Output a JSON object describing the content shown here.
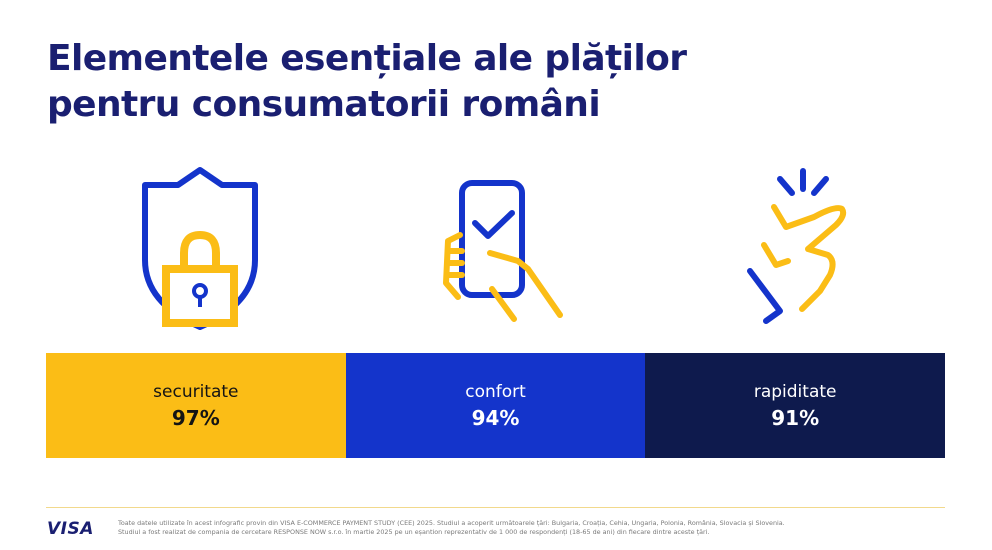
{
  "header": {
    "title_line1": "Elementele esențiale ale plăților",
    "title_line2": "pentru consumatorii români"
  },
  "icons": [
    {
      "name": "shield-lock-icon"
    },
    {
      "name": "phone-check-icon"
    },
    {
      "name": "finger-snap-icon"
    }
  ],
  "stats": [
    {
      "label": "securitate",
      "value": "97%",
      "color": "#fbbd16",
      "text_color": "#141414"
    },
    {
      "label": "confort",
      "value": "94%",
      "color": "#1434cb",
      "text_color": "#ffffff"
    },
    {
      "label": "rapiditate",
      "value": "91%",
      "color": "#0e1a4d",
      "text_color": "#ffffff"
    }
  ],
  "colors": {
    "title": "#1a1f71",
    "blue": "#1434cb",
    "yellow": "#fbbd16",
    "navy": "#0e1a4d"
  },
  "footer": {
    "logo": "VISA",
    "note_line1": "Toate datele utilizate în acest infografic provin din VISA E-COMMERCE PAYMENT STUDY (CEE) 2025. Studiul a acoperit următoarele țări: Bulgaria, Croația, Cehia, Ungaria, Polonia, România, Slovacia și Slovenia.",
    "note_line2": "Studiul a fost realizat de compania de cercetare RESPONSE NOW s.r.o. în martie 2025 pe un eșantion reprezentativ de 1 000 de respondenți (18-65 de ani) din fiecare dintre aceste țări."
  }
}
